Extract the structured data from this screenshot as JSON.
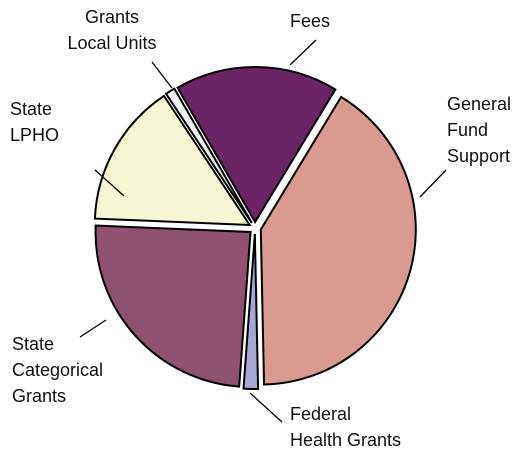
{
  "chart_data": {
    "type": "pie",
    "categories": [
      "Fees",
      "General\nFund\nSupport",
      "Federal\nHealth Grants",
      "State\nCategorical\nGrants",
      "State\nLPHO",
      "Grants\nLocal Units"
    ],
    "values": [
      17,
      41,
      1.5,
      24.5,
      15,
      1
    ],
    "colors": [
      "#6b2466",
      "#d99a90",
      "#a7a7d3",
      "#8e5270",
      "#f6f5d4",
      "#f4f4f8"
    ]
  }
}
